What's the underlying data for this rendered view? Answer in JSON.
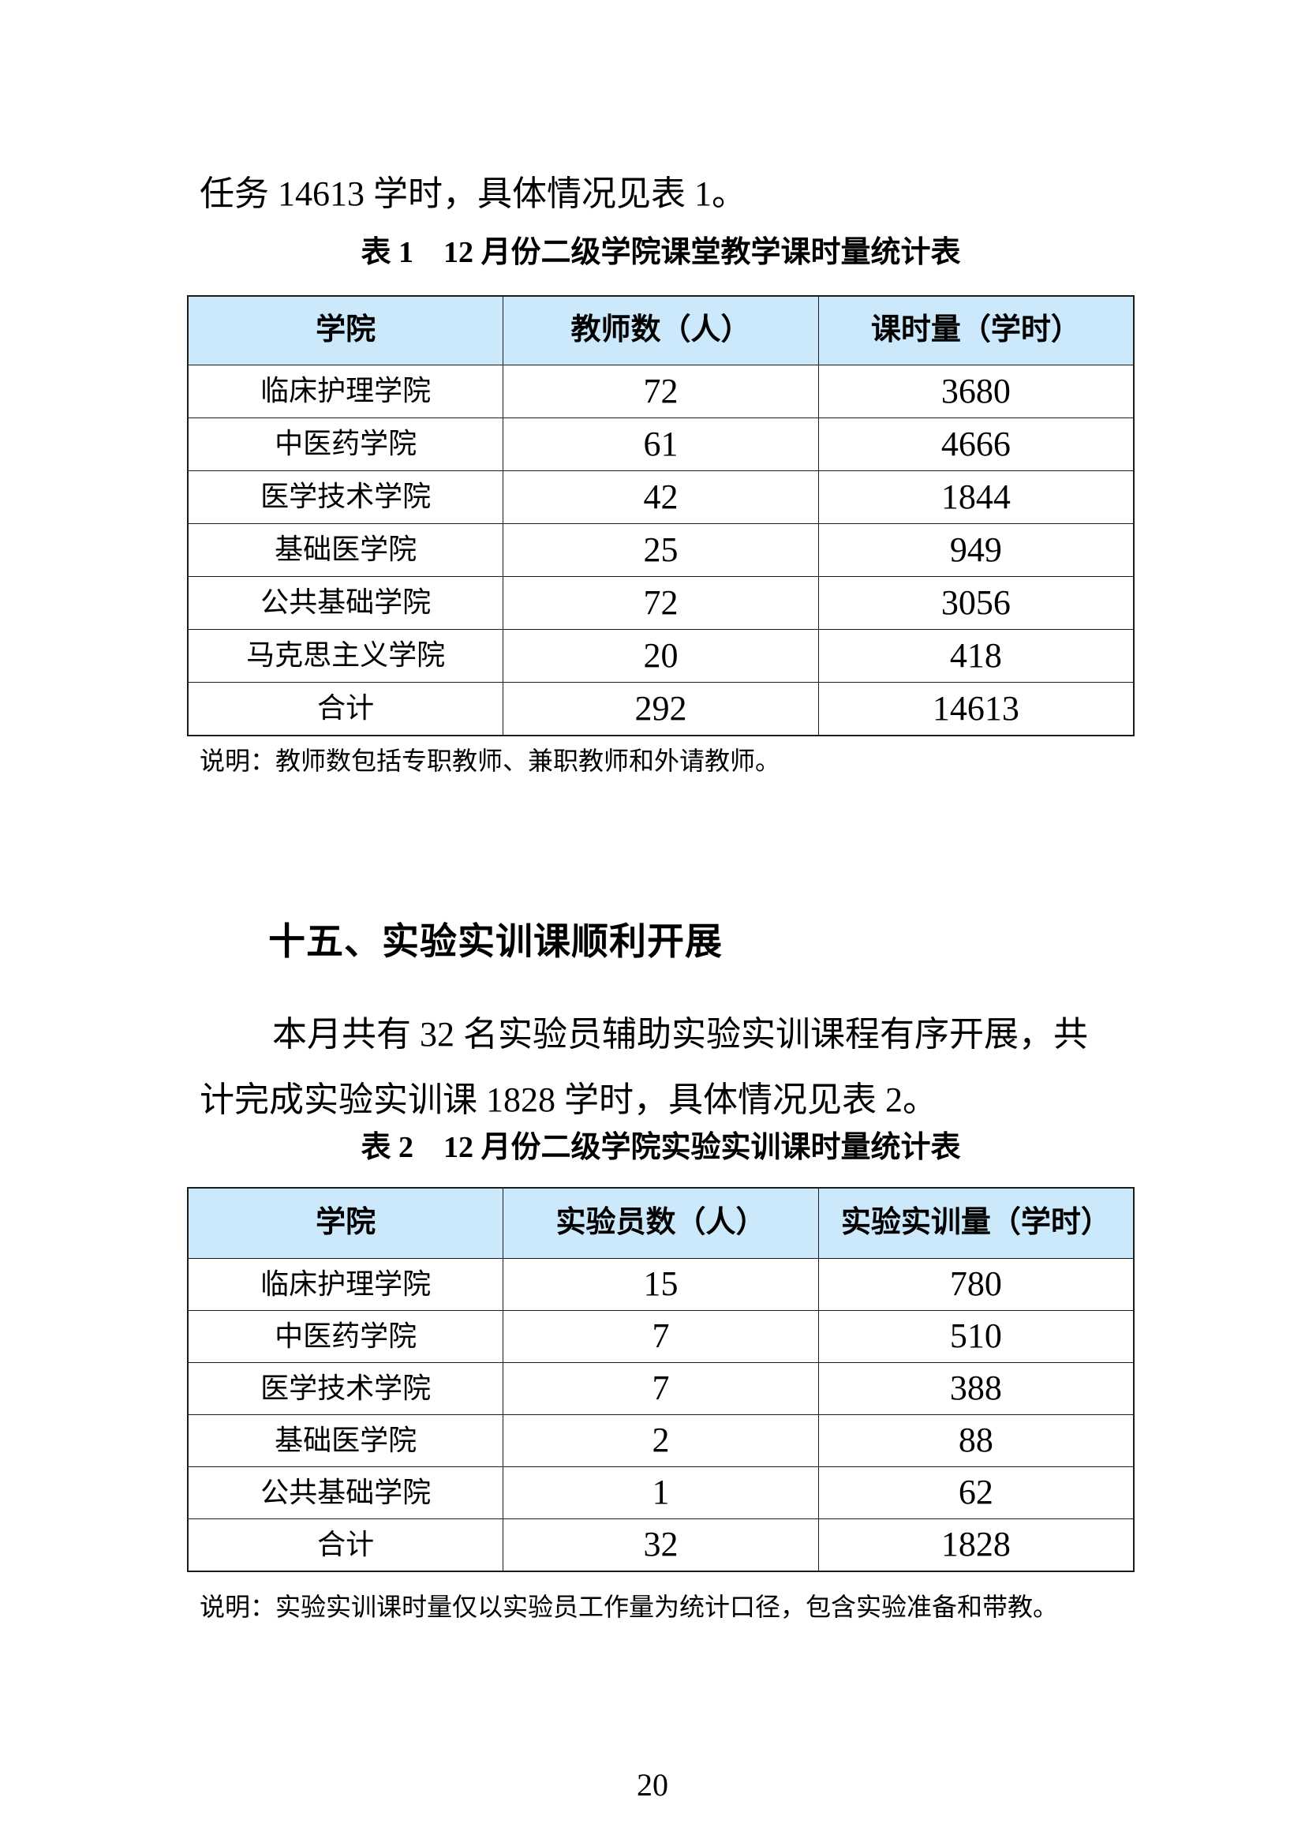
{
  "intro_line": "任务 14613 学时，具体情况见表 1。",
  "table1": {
    "caption": "表 1　12 月份二级学院课堂教学课时量统计表",
    "headers": [
      "学院",
      "教师数（人）",
      "课时量（学时）"
    ],
    "rows": [
      [
        "临床护理学院",
        "72",
        "3680"
      ],
      [
        "中医药学院",
        "61",
        "4666"
      ],
      [
        "医学技术学院",
        "42",
        "1844"
      ],
      [
        "基础医学院",
        "25",
        "949"
      ],
      [
        "公共基础学院",
        "72",
        "3056"
      ],
      [
        "马克思主义学院",
        "20",
        "418"
      ],
      [
        "合计",
        "292",
        "14613"
      ]
    ],
    "note": "说明：教师数包括专职教师、兼职教师和外请教师。"
  },
  "section": {
    "heading": "十五、实验实训课顺利开展",
    "paragraph_lines": [
      "本月共有 32 名实验员辅助实验实训课程有序开展，共",
      "计完成实验实训课 1828 学时，具体情况见表 2。"
    ]
  },
  "table2": {
    "caption": "表 2　12 月份二级学院实验实训课时量统计表",
    "headers": [
      "学院",
      "实验员数（人）",
      "实验实训量（学时）"
    ],
    "rows": [
      [
        "临床护理学院",
        "15",
        "780"
      ],
      [
        "中医药学院",
        "7",
        "510"
      ],
      [
        "医学技术学院",
        "7",
        "388"
      ],
      [
        "基础医学院",
        "2",
        "88"
      ],
      [
        "公共基础学院",
        "1",
        "62"
      ],
      [
        "合计",
        "32",
        "1828"
      ]
    ],
    "note": "说明：实验实训课时量仅以实验员工作量为统计口径，包含实验准备和带教。"
  },
  "page": {
    "number": "20"
  },
  "colors": {
    "table_header_bg": "#CCE9FB",
    "border": "#1c1c1c",
    "text": "#000000"
  }
}
